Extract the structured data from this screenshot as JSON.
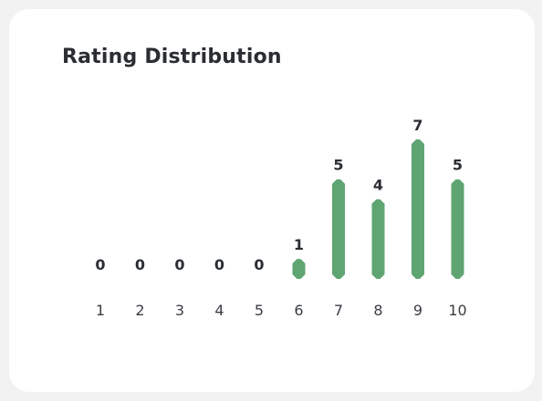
{
  "card": {
    "title": "Rating Distribution"
  },
  "chart_data": {
    "type": "bar",
    "title": "Rating Distribution",
    "categories": [
      "1",
      "2",
      "3",
      "4",
      "5",
      "6",
      "7",
      "8",
      "9",
      "10"
    ],
    "values": [
      0,
      0,
      0,
      0,
      0,
      1,
      5,
      4,
      7,
      5
    ],
    "data_labels": [
      "0",
      "0",
      "0",
      "0",
      "0",
      "1",
      "5",
      "4",
      "7",
      "5"
    ],
    "xlabel": "",
    "ylabel": "",
    "ylim": [
      0,
      7
    ],
    "grid": false,
    "bar_color": "#5ea572"
  }
}
